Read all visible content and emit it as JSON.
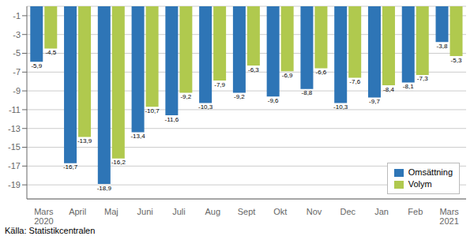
{
  "chart_data": {
    "type": "bar",
    "categories": [
      "Mars\n2020",
      "April",
      "Maj",
      "Juni",
      "Juli",
      "Aug",
      "Sept",
      "Okt",
      "Nov",
      "Dec",
      "Jan",
      "Feb",
      "Mars\n2021"
    ],
    "series": [
      {
        "name": "Omsättning",
        "color": "#2e75b6",
        "values": [
          -5.9,
          -16.7,
          -18.9,
          -13.4,
          -11.6,
          -10.3,
          -9.2,
          -9.6,
          -8.8,
          -10.3,
          -9.7,
          -8.1,
          -3.8
        ],
        "value_labels": [
          "-5,9",
          "-16,7",
          "-18,9",
          "-13,4",
          "-11,6",
          "-10,3",
          "-9,2",
          "-9,6",
          "-8,8",
          "-10,3",
          "-9,7",
          "-8,1",
          "-3,8"
        ]
      },
      {
        "name": "Volym",
        "color": "#b0c94e",
        "values": [
          -4.5,
          -13.9,
          -16.2,
          -10.7,
          -9.2,
          -7.9,
          -6.3,
          -6.9,
          -6.6,
          -7.6,
          -8.4,
          -7.3,
          -5.3
        ],
        "value_labels": [
          "-4,5",
          "-13,9",
          "-16,2",
          "-10,7",
          "-9,2",
          "-7,9",
          "-6,3",
          "-6,9",
          "-6,6",
          "-7,6",
          "-8,4",
          "-7,3",
          "-5,3"
        ]
      }
    ],
    "ylim": [
      -20.5,
      0
    ],
    "yticks": [
      -1,
      -3,
      -5,
      -7,
      -9,
      -11,
      -13,
      -15,
      -17,
      -19
    ],
    "grid": true,
    "legend": "lower right",
    "data_labels": true,
    "annotations": [
      "Källa: Statistikcentralen"
    ]
  }
}
